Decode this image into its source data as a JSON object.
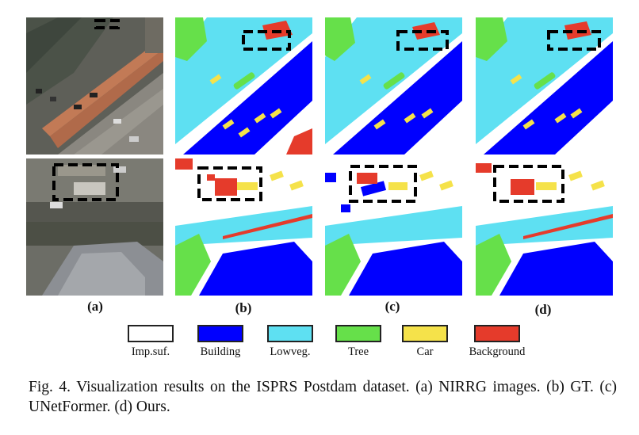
{
  "figure": {
    "column_labels": [
      "(a)",
      "(b)",
      "(c)",
      "(d)"
    ],
    "legend": [
      {
        "label": "Imp.suf.",
        "color": "#ffffff"
      },
      {
        "label": "Building",
        "color": "#0000ff"
      },
      {
        "label": "Lowveg.",
        "color": "#5ee0f2"
      },
      {
        "label": "Tree",
        "color": "#66e04a"
      },
      {
        "label": "Car",
        "color": "#f5e24a"
      },
      {
        "label": "Background",
        "color": "#e53b2b"
      }
    ],
    "caption": "Fig. 4.  Visualization results on the ISPRS Postdam dataset. (a) NIRRG images. (b) GT. (c) UNetFormer. (d) Ours."
  }
}
